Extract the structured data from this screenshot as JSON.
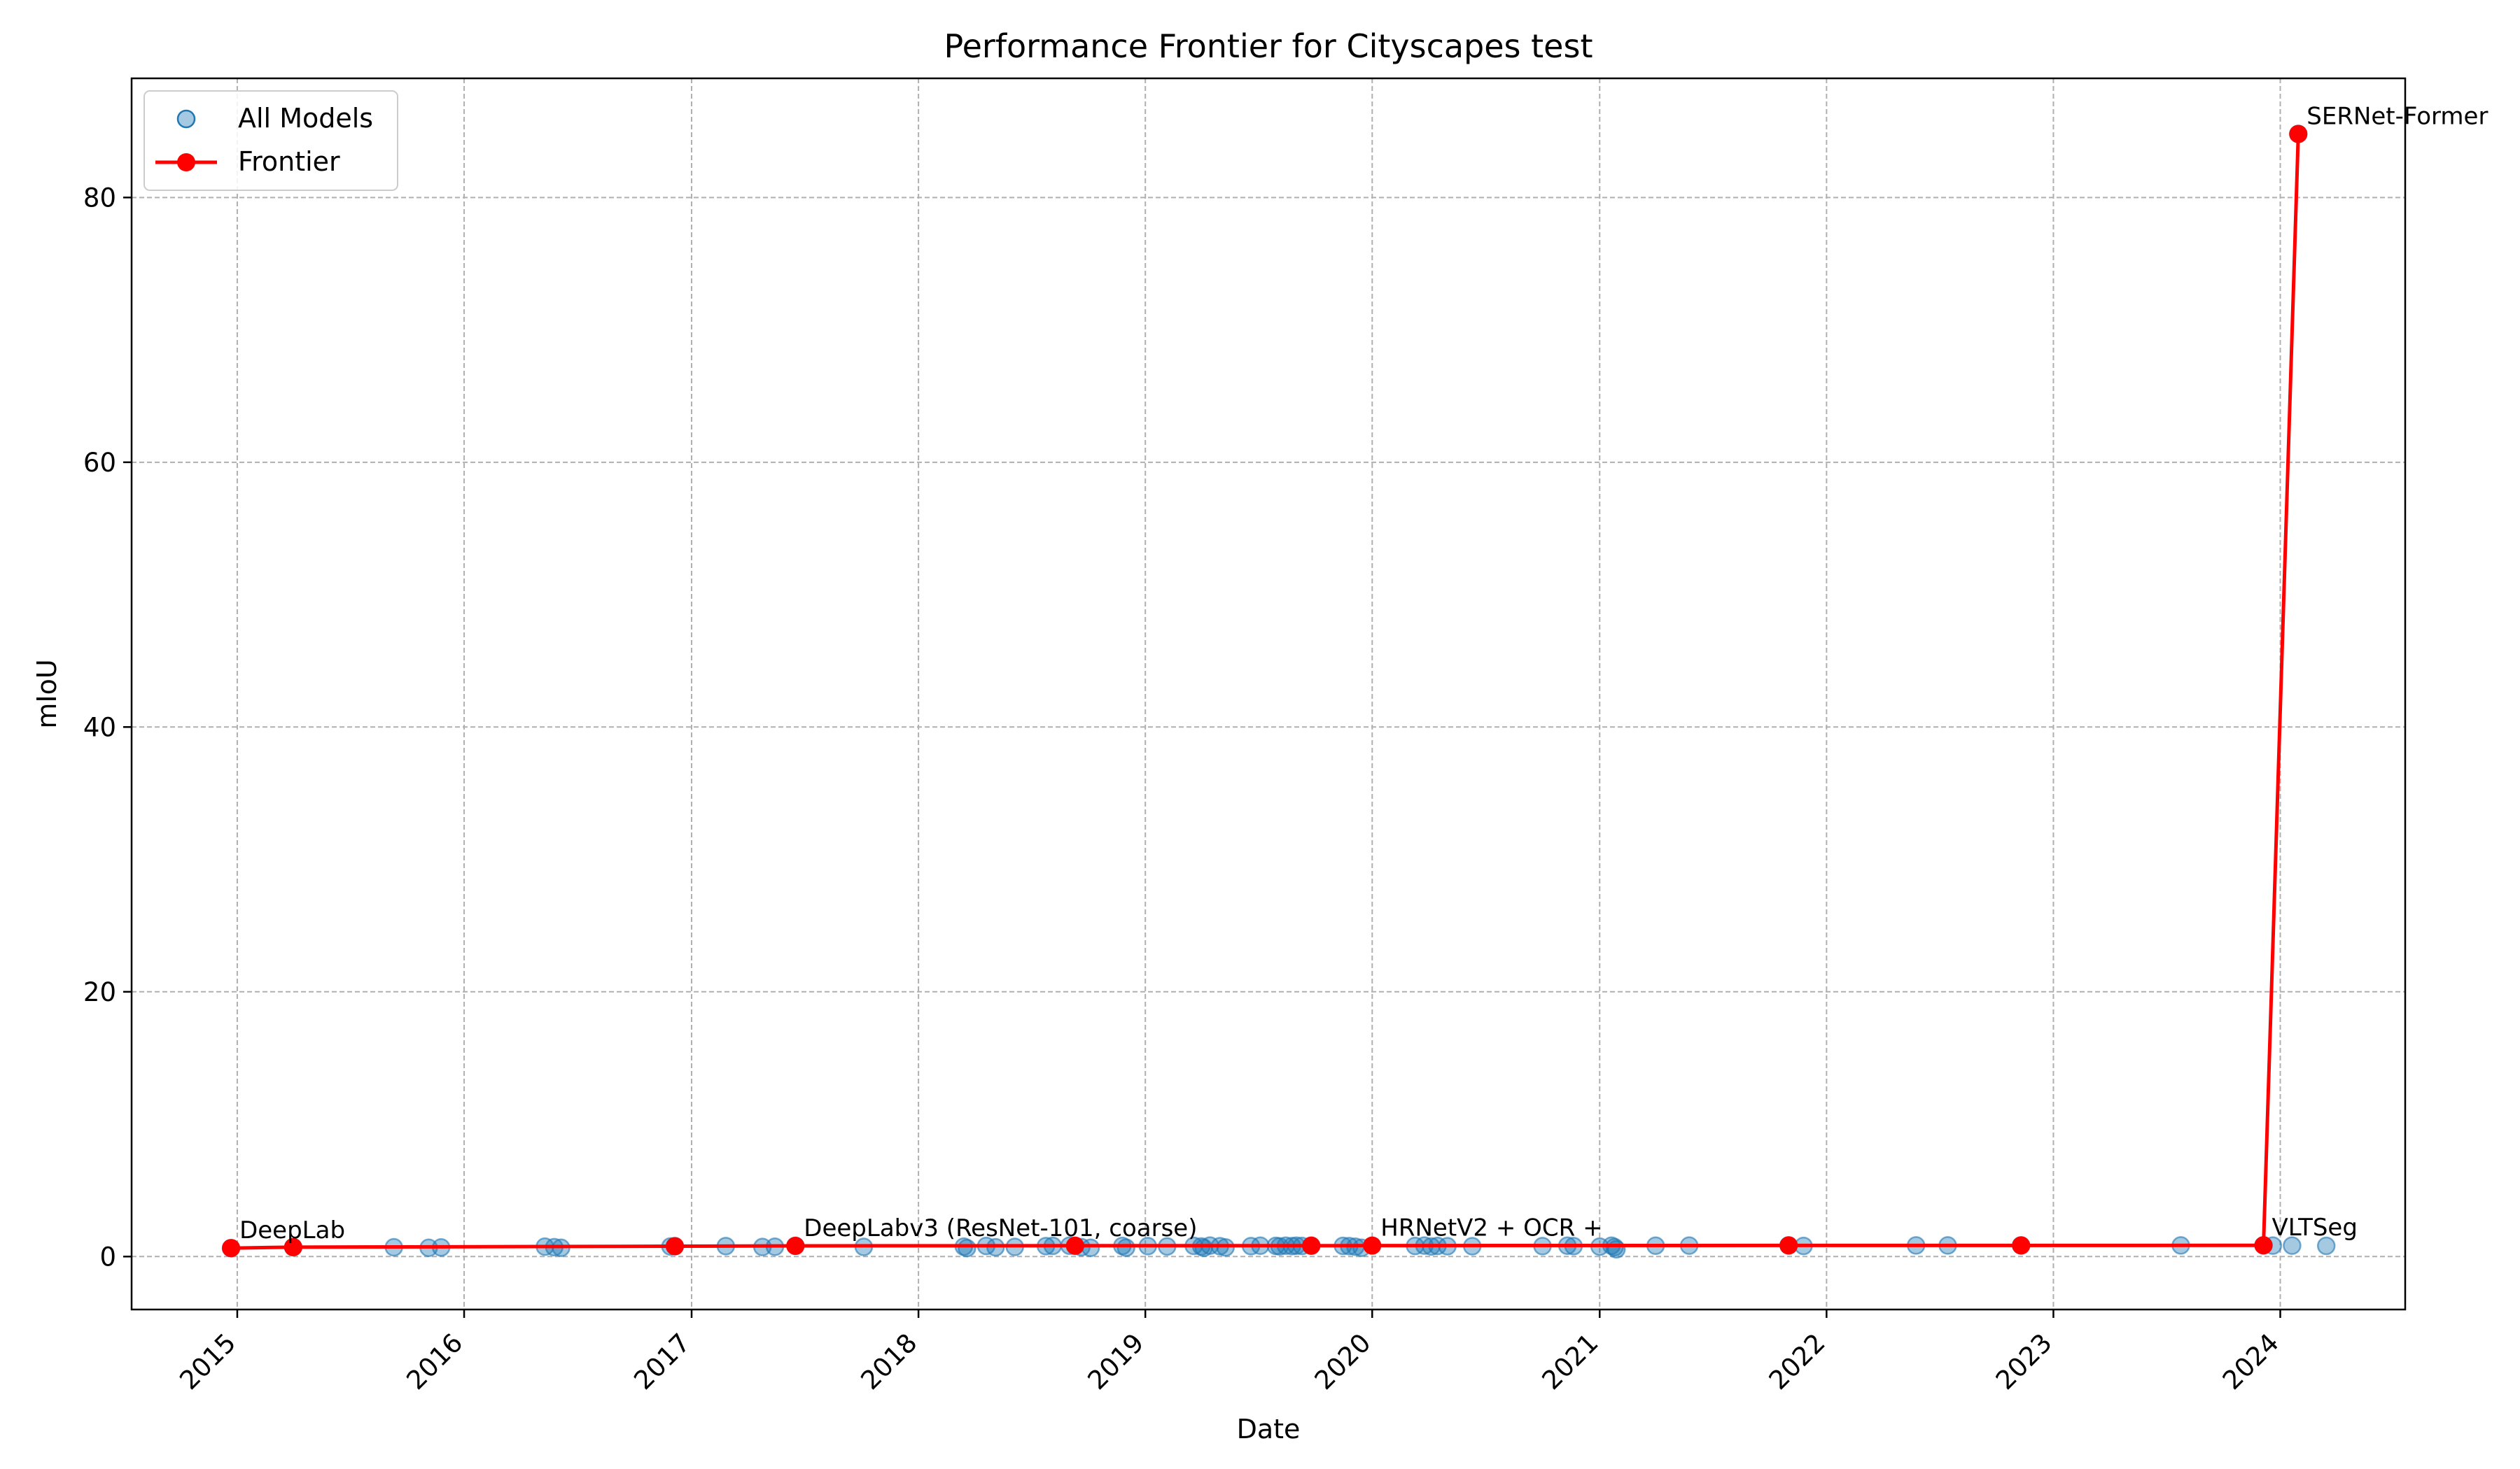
{
  "chart_data": {
    "type": "scatter",
    "title": "Performance Frontier for Cityscapes test",
    "xlabel": "Date",
    "ylabel": "mIoU",
    "xlim": [
      "2014-07-15",
      "2024-07-20"
    ],
    "ylim": [
      -4,
      89
    ],
    "x_ticks": [
      "2015",
      "2016",
      "2017",
      "2018",
      "2019",
      "2020",
      "2021",
      "2022",
      "2023",
      "2024"
    ],
    "y_ticks": [
      0,
      20,
      40,
      60,
      80
    ],
    "grid": true,
    "legend_position": "top-left",
    "series": [
      {
        "name": "All Models",
        "kind": "scatter",
        "color": "#1f77b4",
        "points": [
          [
            "2014-12-22",
            0.64
          ],
          [
            "2015-04-01",
            0.71
          ],
          [
            "2015-09-10",
            0.7
          ],
          [
            "2015-11-05",
            0.66
          ],
          [
            "2015-11-25",
            0.69
          ],
          [
            "2016-05-10",
            0.75
          ],
          [
            "2016-05-25",
            0.71
          ],
          [
            "2016-06-05",
            0.66
          ],
          [
            "2016-11-28",
            0.76
          ],
          [
            "2016-12-05",
            0.78
          ],
          [
            "2017-02-25",
            0.79
          ],
          [
            "2017-04-25",
            0.72
          ],
          [
            "2017-05-15",
            0.74
          ],
          [
            "2017-06-17",
            0.81
          ],
          [
            "2017-10-05",
            0.73
          ],
          [
            "2018-03-15",
            0.75
          ],
          [
            "2018-03-20",
            0.64
          ],
          [
            "2018-04-20",
            0.8
          ],
          [
            "2018-05-05",
            0.7
          ],
          [
            "2018-06-05",
            0.73
          ],
          [
            "2018-07-25",
            0.79
          ],
          [
            "2018-08-05",
            0.81
          ],
          [
            "2018-09-01",
            0.82
          ],
          [
            "2018-09-10",
            0.8
          ],
          [
            "2018-09-20",
            0.71
          ],
          [
            "2018-10-05",
            0.66
          ],
          [
            "2018-11-25",
            0.8
          ],
          [
            "2018-12-01",
            0.67
          ],
          [
            "2019-01-05",
            0.79
          ],
          [
            "2019-02-05",
            0.76
          ],
          [
            "2019-03-20",
            0.81
          ],
          [
            "2019-04-01",
            0.76
          ],
          [
            "2019-04-05",
            0.66
          ],
          [
            "2019-04-15",
            0.83
          ],
          [
            "2019-05-01",
            0.78
          ],
          [
            "2019-05-10",
            0.69
          ],
          [
            "2019-06-20",
            0.79
          ],
          [
            "2019-07-05",
            0.82
          ],
          [
            "2019-07-30",
            0.81
          ],
          [
            "2019-08-05",
            0.77
          ],
          [
            "2019-08-15",
            0.82
          ],
          [
            "2019-08-25",
            0.79
          ],
          [
            "2019-09-01",
            0.82
          ],
          [
            "2019-09-10",
            0.8
          ],
          [
            "2019-09-25",
            0.82
          ],
          [
            "2019-11-15",
            0.81
          ],
          [
            "2019-11-25",
            0.79
          ],
          [
            "2019-12-05",
            0.74
          ],
          [
            "2019-12-15",
            0.66
          ],
          [
            "2020-03-10",
            0.8
          ],
          [
            "2020-03-25",
            0.83
          ],
          [
            "2020-04-05",
            0.76
          ],
          [
            "2020-04-15",
            0.8
          ],
          [
            "2020-05-01",
            0.78
          ],
          [
            "2020-06-10",
            0.78
          ],
          [
            "2020-10-01",
            0.79
          ],
          [
            "2020-11-10",
            0.82
          ],
          [
            "2020-11-20",
            0.79
          ],
          [
            "2021-01-01",
            0.75
          ],
          [
            "2021-01-20",
            0.82
          ],
          [
            "2021-01-25",
            0.71
          ],
          [
            "2021-01-28",
            0.55
          ],
          [
            "2021-04-01",
            0.82
          ],
          [
            "2021-05-25",
            0.83
          ],
          [
            "2021-11-01",
            0.84
          ],
          [
            "2021-11-25",
            0.8
          ],
          [
            "2022-05-25",
            0.84
          ],
          [
            "2022-07-15",
            0.84
          ],
          [
            "2022-11-10",
            0.84
          ],
          [
            "2023-07-25",
            0.84
          ],
          [
            "2023-12-05",
            0.85
          ],
          [
            "2023-12-20",
            0.83
          ],
          [
            "2024-01-20",
            0.83
          ],
          [
            "2024-01-30",
            84.8
          ],
          [
            "2024-03-15",
            0.81
          ]
        ]
      },
      {
        "name": "Frontier",
        "kind": "line",
        "color": "#ff0000",
        "points": [
          [
            "2014-12-22",
            0.64
          ],
          [
            "2015-04-01",
            0.71
          ],
          [
            "2016-12-05",
            0.78
          ],
          [
            "2017-06-17",
            0.81
          ],
          [
            "2018-09-10",
            0.82
          ],
          [
            "2019-09-25",
            0.82
          ],
          [
            "2020-01-01",
            0.83
          ],
          [
            "2021-11-01",
            0.84
          ],
          [
            "2022-11-10",
            0.84
          ],
          [
            "2023-12-05",
            0.85
          ],
          [
            "2024-01-30",
            84.8
          ]
        ]
      }
    ],
    "annotations": [
      {
        "text": "DeepLab",
        "x": "2014-12-22",
        "y": 0.64
      },
      {
        "text": "DeepLabv3 (ResNet-101, coarse)",
        "x": "2017-06-17",
        "y": 0.81
      },
      {
        "text": "HRNetV2 + OCR +",
        "x": "2020-01-01",
        "y": 0.83
      },
      {
        "text": "VLTSeg",
        "x": "2023-12-05",
        "y": 0.85
      },
      {
        "text": "SERNet-Former",
        "x": "2024-01-30",
        "y": 84.8
      }
    ]
  }
}
